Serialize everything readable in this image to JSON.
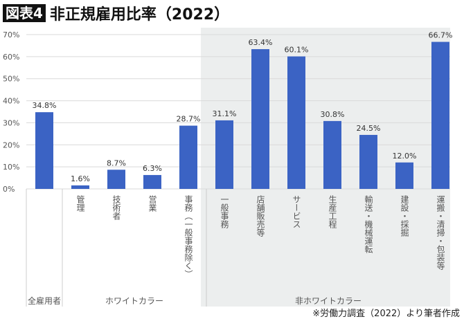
{
  "title": {
    "badge": "図表4",
    "text": "非正規雇用比率（2022）"
  },
  "source": "※労働力調査（2022）より筆者作成",
  "colors": {
    "bar": "#3b63c4",
    "shade": "#eceeee",
    "grid": "#d9d9d9"
  },
  "chart_data": {
    "type": "bar",
    "title": "非正規雇用比率（2022）",
    "categories": [
      "全雇用者",
      "管理",
      "技術者",
      "営業",
      "事務（一般事務除く）",
      "一般事務",
      "店舗販売等",
      "サービス",
      "生産工程",
      "輸送・機械運転",
      "建設・採掘",
      "運搬・清掃・包装等"
    ],
    "values": [
      34.8,
      1.6,
      8.7,
      6.3,
      28.7,
      31.1,
      63.4,
      60.1,
      30.8,
      24.5,
      12.0,
      66.7
    ],
    "data_labels": [
      "34.8%",
      "1.6%",
      "8.7%",
      "6.3%",
      "28.7%",
      "31.1%",
      "63.4%",
      "60.1%",
      "30.8%",
      "24.5%",
      "12.0%",
      "66.7%"
    ],
    "groups": [
      {
        "label": "全雇用者",
        "from": 0,
        "to": 0
      },
      {
        "label": "ホワイトカラー",
        "from": 1,
        "to": 4
      },
      {
        "label": "非ホワイトカラー",
        "from": 5,
        "to": 11
      }
    ],
    "yticks": [
      "0%",
      "10%",
      "20%",
      "30%",
      "40%",
      "50%",
      "60%",
      "70%"
    ],
    "ylim": [
      0,
      70
    ],
    "grid": true,
    "legend": "none"
  }
}
